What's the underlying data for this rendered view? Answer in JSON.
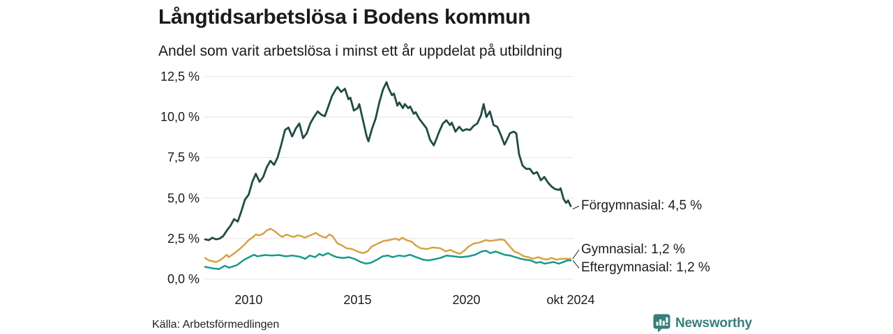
{
  "header": {
    "title": "Långtidsarbetslösa i Bodens kommun",
    "subtitle": "Andel som varit arbetslösa i minst ett år uppdelat på utbildning"
  },
  "footer": {
    "source": "Källa: Arbetsförmedlingen",
    "brand": "Newsworthy",
    "brand_icon": "newsworthy-chart-bubble-icon",
    "brand_color": "#377f7a"
  },
  "chart_data": {
    "type": "line",
    "title": "Långtidsarbetslösa i Bodens kommun",
    "subtitle": "Andel som varit arbetslösa i minst ett år uppdelat på utbildning",
    "grid": true,
    "grid_color": "#e4e4e4",
    "ylim": [
      0,
      12.5
    ],
    "x_range": [
      2008,
      2024.79
    ],
    "yticks": [
      {
        "label": "12,5 %",
        "value": 12.5
      },
      {
        "label": "10,0 %",
        "value": 10.0
      },
      {
        "label": "7,5 %",
        "value": 7.5
      },
      {
        "label": "5,0 %",
        "value": 5.0
      },
      {
        "label": "2,5 %",
        "value": 2.5
      },
      {
        "label": "0,0 %",
        "value": 0.0
      }
    ],
    "xticks": [
      {
        "label": "2010",
        "value": 2010
      },
      {
        "label": "2015",
        "value": 2015
      },
      {
        "label": "2020",
        "value": 2020
      },
      {
        "label": "okt 2024",
        "value": 2024.79
      }
    ],
    "legend_position": "right-end-labels",
    "series": [
      {
        "name": "Förgymnasial",
        "end_label": "Förgymnasial: 4,5 %",
        "end_value": "4,5 %",
        "color": "#1f4c44",
        "points": [
          [
            2008.0,
            2.45
          ],
          [
            2008.17,
            2.4
          ],
          [
            2008.33,
            2.55
          ],
          [
            2008.5,
            2.45
          ],
          [
            2008.67,
            2.5
          ],
          [
            2008.83,
            2.65
          ],
          [
            2009.0,
            3.0
          ],
          [
            2009.17,
            3.3
          ],
          [
            2009.33,
            3.7
          ],
          [
            2009.5,
            3.55
          ],
          [
            2009.67,
            4.2
          ],
          [
            2009.83,
            4.9
          ],
          [
            2010.0,
            5.2
          ],
          [
            2010.17,
            6.0
          ],
          [
            2010.33,
            6.5
          ],
          [
            2010.5,
            6.0
          ],
          [
            2010.67,
            6.3
          ],
          [
            2010.83,
            6.9
          ],
          [
            2011.0,
            7.3
          ],
          [
            2011.17,
            7.05
          ],
          [
            2011.33,
            7.5
          ],
          [
            2011.5,
            8.3
          ],
          [
            2011.67,
            9.2
          ],
          [
            2011.83,
            9.35
          ],
          [
            2012.0,
            8.8
          ],
          [
            2012.17,
            9.3
          ],
          [
            2012.33,
            9.6
          ],
          [
            2012.5,
            8.7
          ],
          [
            2012.67,
            9.0
          ],
          [
            2012.83,
            9.6
          ],
          [
            2013.0,
            10.0
          ],
          [
            2013.17,
            10.35
          ],
          [
            2013.33,
            10.15
          ],
          [
            2013.5,
            10.05
          ],
          [
            2013.67,
            10.7
          ],
          [
            2013.83,
            11.3
          ],
          [
            2014.0,
            11.7
          ],
          [
            2014.08,
            11.85
          ],
          [
            2014.25,
            11.55
          ],
          [
            2014.42,
            11.75
          ],
          [
            2014.58,
            11.1
          ],
          [
            2014.67,
            11.2
          ],
          [
            2014.83,
            10.4
          ],
          [
            2015.0,
            10.55
          ],
          [
            2015.08,
            10.8
          ],
          [
            2015.25,
            9.8
          ],
          [
            2015.42,
            8.8
          ],
          [
            2015.5,
            8.5
          ],
          [
            2015.67,
            9.3
          ],
          [
            2015.83,
            9.9
          ],
          [
            2016.0,
            10.9
          ],
          [
            2016.17,
            11.7
          ],
          [
            2016.33,
            12.15
          ],
          [
            2016.42,
            11.8
          ],
          [
            2016.58,
            11.35
          ],
          [
            2016.67,
            11.45
          ],
          [
            2016.83,
            10.7
          ],
          [
            2016.92,
            10.9
          ],
          [
            2017.08,
            10.55
          ],
          [
            2017.17,
            10.8
          ],
          [
            2017.33,
            10.55
          ],
          [
            2017.42,
            10.65
          ],
          [
            2017.58,
            10.2
          ],
          [
            2017.67,
            10.3
          ],
          [
            2017.83,
            9.9
          ],
          [
            2018.0,
            9.6
          ],
          [
            2018.17,
            9.3
          ],
          [
            2018.33,
            8.6
          ],
          [
            2018.5,
            8.25
          ],
          [
            2018.58,
            8.5
          ],
          [
            2018.75,
            9.1
          ],
          [
            2018.92,
            9.6
          ],
          [
            2019.08,
            9.8
          ],
          [
            2019.25,
            9.5
          ],
          [
            2019.33,
            9.65
          ],
          [
            2019.5,
            9.1
          ],
          [
            2019.67,
            9.4
          ],
          [
            2019.83,
            9.15
          ],
          [
            2020.0,
            9.25
          ],
          [
            2020.17,
            9.2
          ],
          [
            2020.33,
            9.45
          ],
          [
            2020.5,
            9.6
          ],
          [
            2020.67,
            10.1
          ],
          [
            2020.79,
            10.8
          ],
          [
            2020.92,
            10.0
          ],
          [
            2021.08,
            10.35
          ],
          [
            2021.25,
            9.5
          ],
          [
            2021.42,
            9.4
          ],
          [
            2021.58,
            8.9
          ],
          [
            2021.75,
            8.3
          ],
          [
            2021.83,
            8.5
          ],
          [
            2022.0,
            9.0
          ],
          [
            2022.17,
            9.1
          ],
          [
            2022.29,
            9.0
          ],
          [
            2022.42,
            7.7
          ],
          [
            2022.58,
            7.0
          ],
          [
            2022.75,
            6.8
          ],
          [
            2022.92,
            6.8
          ],
          [
            2023.08,
            6.5
          ],
          [
            2023.25,
            6.6
          ],
          [
            2023.42,
            6.1
          ],
          [
            2023.58,
            6.3
          ],
          [
            2023.75,
            5.95
          ],
          [
            2023.92,
            5.7
          ],
          [
            2024.08,
            5.55
          ],
          [
            2024.25,
            5.5
          ],
          [
            2024.33,
            5.6
          ],
          [
            2024.46,
            4.95
          ],
          [
            2024.58,
            4.7
          ],
          [
            2024.67,
            4.85
          ],
          [
            2024.79,
            4.5
          ]
        ]
      },
      {
        "name": "Gymnasial",
        "end_label": "Gymnasial: 1,2 %",
        "end_value": "1,2 %",
        "color": "#d7a243",
        "points": [
          [
            2008.0,
            1.3
          ],
          [
            2008.17,
            1.15
          ],
          [
            2008.33,
            1.1
          ],
          [
            2008.5,
            1.05
          ],
          [
            2008.67,
            1.15
          ],
          [
            2008.83,
            1.3
          ],
          [
            2009.0,
            1.5
          ],
          [
            2009.08,
            1.35
          ],
          [
            2009.25,
            1.5
          ],
          [
            2009.45,
            1.7
          ],
          [
            2009.67,
            1.95
          ],
          [
            2009.83,
            2.15
          ],
          [
            2010.0,
            2.4
          ],
          [
            2010.17,
            2.55
          ],
          [
            2010.33,
            2.75
          ],
          [
            2010.5,
            2.7
          ],
          [
            2010.67,
            2.8
          ],
          [
            2010.83,
            3.0
          ],
          [
            2011.0,
            3.1
          ],
          [
            2011.08,
            3.05
          ],
          [
            2011.25,
            2.9
          ],
          [
            2011.42,
            2.7
          ],
          [
            2011.55,
            2.6
          ],
          [
            2011.75,
            2.75
          ],
          [
            2011.92,
            2.65
          ],
          [
            2012.08,
            2.6
          ],
          [
            2012.25,
            2.7
          ],
          [
            2012.42,
            2.65
          ],
          [
            2012.58,
            2.55
          ],
          [
            2012.75,
            2.65
          ],
          [
            2012.92,
            2.75
          ],
          [
            2013.08,
            2.85
          ],
          [
            2013.25,
            2.7
          ],
          [
            2013.42,
            2.6
          ],
          [
            2013.55,
            2.55
          ],
          [
            2013.7,
            2.75
          ],
          [
            2013.85,
            2.65
          ],
          [
            2014.0,
            2.35
          ],
          [
            2014.08,
            2.2
          ],
          [
            2014.25,
            2.1
          ],
          [
            2014.5,
            1.9
          ],
          [
            2014.75,
            1.85
          ],
          [
            2015.0,
            1.7
          ],
          [
            2015.25,
            1.6
          ],
          [
            2015.45,
            1.7
          ],
          [
            2015.65,
            2.0
          ],
          [
            2015.95,
            2.2
          ],
          [
            2016.2,
            2.35
          ],
          [
            2016.45,
            2.4
          ],
          [
            2016.75,
            2.5
          ],
          [
            2016.9,
            2.4
          ],
          [
            2017.05,
            2.55
          ],
          [
            2017.25,
            2.4
          ],
          [
            2017.5,
            2.3
          ],
          [
            2017.7,
            2.05
          ],
          [
            2017.9,
            1.9
          ],
          [
            2018.2,
            1.85
          ],
          [
            2018.45,
            1.95
          ],
          [
            2018.8,
            1.9
          ],
          [
            2019.05,
            1.7
          ],
          [
            2019.25,
            1.8
          ],
          [
            2019.5,
            1.65
          ],
          [
            2019.7,
            1.55
          ],
          [
            2019.9,
            1.75
          ],
          [
            2020.1,
            2.0
          ],
          [
            2020.35,
            2.2
          ],
          [
            2020.6,
            2.25
          ],
          [
            2020.9,
            2.4
          ],
          [
            2021.1,
            2.35
          ],
          [
            2021.35,
            2.4
          ],
          [
            2021.6,
            2.45
          ],
          [
            2021.75,
            2.4
          ],
          [
            2022.0,
            2.0
          ],
          [
            2022.2,
            1.7
          ],
          [
            2022.4,
            1.6
          ],
          [
            2022.65,
            1.4
          ],
          [
            2022.85,
            1.35
          ],
          [
            2023.05,
            1.25
          ],
          [
            2023.3,
            1.35
          ],
          [
            2023.5,
            1.25
          ],
          [
            2023.7,
            1.2
          ],
          [
            2023.9,
            1.3
          ],
          [
            2024.15,
            1.2
          ],
          [
            2024.35,
            1.25
          ],
          [
            2024.55,
            1.25
          ],
          [
            2024.79,
            1.25
          ]
        ]
      },
      {
        "name": "Eftergymnasial",
        "end_label": "Eftergymnasial: 1,2 %",
        "end_value": "1,2 %",
        "color": "#17998a",
        "points": [
          [
            2008.0,
            0.75
          ],
          [
            2008.2,
            0.7
          ],
          [
            2008.4,
            0.65
          ],
          [
            2008.65,
            0.62
          ],
          [
            2008.9,
            0.82
          ],
          [
            2009.1,
            0.7
          ],
          [
            2009.45,
            0.85
          ],
          [
            2009.8,
            1.2
          ],
          [
            2010.1,
            1.4
          ],
          [
            2010.25,
            1.5
          ],
          [
            2010.4,
            1.4
          ],
          [
            2010.75,
            1.48
          ],
          [
            2011.05,
            1.45
          ],
          [
            2011.4,
            1.48
          ],
          [
            2011.7,
            1.4
          ],
          [
            2012.0,
            1.45
          ],
          [
            2012.35,
            1.38
          ],
          [
            2012.6,
            1.25
          ],
          [
            2012.8,
            1.45
          ],
          [
            2013.05,
            1.35
          ],
          [
            2013.25,
            1.55
          ],
          [
            2013.4,
            1.45
          ],
          [
            2013.65,
            1.6
          ],
          [
            2013.85,
            1.45
          ],
          [
            2014.05,
            1.35
          ],
          [
            2014.35,
            1.3
          ],
          [
            2014.6,
            1.35
          ],
          [
            2014.85,
            1.25
          ],
          [
            2015.15,
            1.05
          ],
          [
            2015.4,
            0.95
          ],
          [
            2015.6,
            1.0
          ],
          [
            2015.9,
            1.2
          ],
          [
            2016.15,
            1.4
          ],
          [
            2016.4,
            1.45
          ],
          [
            2016.6,
            1.35
          ],
          [
            2016.9,
            1.45
          ],
          [
            2017.15,
            1.4
          ],
          [
            2017.4,
            1.5
          ],
          [
            2017.7,
            1.35
          ],
          [
            2018.0,
            1.2
          ],
          [
            2018.25,
            1.15
          ],
          [
            2018.45,
            1.2
          ],
          [
            2018.8,
            1.3
          ],
          [
            2019.1,
            1.45
          ],
          [
            2019.4,
            1.4
          ],
          [
            2019.75,
            1.35
          ],
          [
            2020.1,
            1.4
          ],
          [
            2020.4,
            1.5
          ],
          [
            2020.7,
            1.7
          ],
          [
            2020.9,
            1.75
          ],
          [
            2021.1,
            1.6
          ],
          [
            2021.35,
            1.7
          ],
          [
            2021.55,
            1.6
          ],
          [
            2021.75,
            1.5
          ],
          [
            2022.0,
            1.45
          ],
          [
            2022.25,
            1.35
          ],
          [
            2022.5,
            1.25
          ],
          [
            2022.7,
            1.2
          ],
          [
            2022.95,
            1.15
          ],
          [
            2023.2,
            1.0
          ],
          [
            2023.4,
            1.05
          ],
          [
            2023.6,
            0.95
          ],
          [
            2023.8,
            1.0
          ],
          [
            2024.0,
            1.05
          ],
          [
            2024.25,
            0.95
          ],
          [
            2024.45,
            1.05
          ],
          [
            2024.65,
            1.15
          ],
          [
            2024.79,
            1.15
          ]
        ]
      }
    ]
  }
}
